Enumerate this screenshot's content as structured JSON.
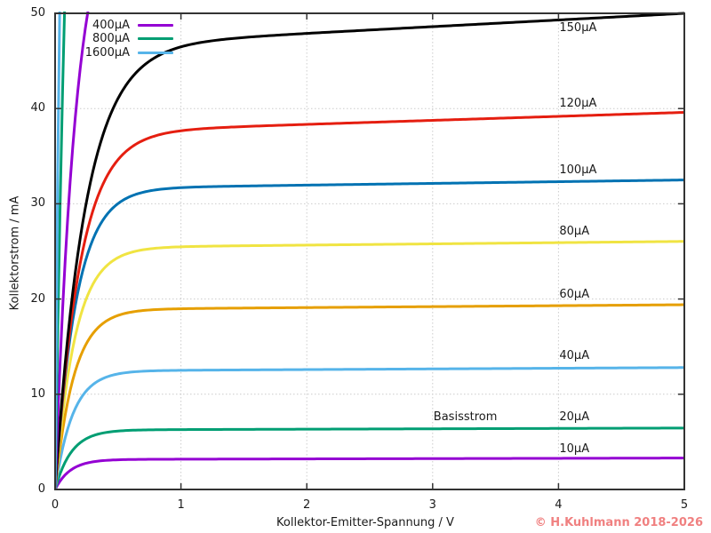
{
  "chart_data": {
    "type": "line",
    "title": "",
    "xlabel": "Kollektor-Emitter-Spannung / V",
    "ylabel": "Kollektorstrom / mA",
    "xlim": [
      0,
      5
    ],
    "ylim": [
      0,
      50
    ],
    "xticks": [
      0,
      1,
      2,
      3,
      4,
      5
    ],
    "yticks": [
      0,
      10,
      20,
      30,
      40,
      50
    ],
    "grid": {
      "show": true,
      "style": "dotted",
      "color": "#cccccc",
      "x_lines": [
        1,
        2,
        3,
        4
      ],
      "y_lines": [
        10,
        20,
        30,
        40
      ]
    },
    "axis_color": "#333333",
    "legend": {
      "position": "top-left",
      "entries": [
        {
          "label": "400µA",
          "color": "#9400d3"
        },
        {
          "label": "800µA",
          "color": "#009e73"
        },
        {
          "label": "1600µA",
          "color": "#56b4e9"
        }
      ]
    },
    "annotation": {
      "text": "Basisstrom",
      "x_V": 3.0,
      "y_mA": 7.5
    },
    "x_sample_V": [
      0,
      0.1,
      0.25,
      0.5,
      1,
      2,
      3,
      4,
      5
    ],
    "series": [
      {
        "name": "10µA",
        "color": "#9400d3",
        "model": {
          "sat_mA": 3.15,
          "knee_V": 0.12,
          "slope_mA_per_V": 0.03
        },
        "values_mA": [
          0,
          1.78,
          2.77,
          3.12,
          3.18,
          3.21,
          3.24,
          3.27,
          3.3
        ],
        "label_at": {
          "x_V": 4.0,
          "y_mA": 4.1
        }
      },
      {
        "name": "20µA",
        "color": "#009e73",
        "model": {
          "sat_mA": 6.25,
          "knee_V": 0.13,
          "slope_mA_per_V": 0.04
        },
        "values_mA": [
          0,
          3.36,
          5.35,
          6.14,
          6.29,
          6.33,
          6.37,
          6.41,
          6.45
        ],
        "label_at": {
          "x_V": 4.0,
          "y_mA": 7.5
        }
      },
      {
        "name": "40µA",
        "color": "#56b4e9",
        "model": {
          "sat_mA": 12.45,
          "knee_V": 0.14,
          "slope_mA_per_V": 0.07
        },
        "values_mA": [
          0,
          6.36,
          10.38,
          12.14,
          12.51,
          12.59,
          12.66,
          12.73,
          12.8
        ],
        "label_at": {
          "x_V": 4.0,
          "y_mA": 13.9
        }
      },
      {
        "name": "60µA",
        "color": "#e69f00",
        "model": {
          "sat_mA": 18.9,
          "knee_V": 0.15,
          "slope_mA_per_V": 0.1
        },
        "values_mA": [
          0,
          9.21,
          15.36,
          18.28,
          18.98,
          19.1,
          19.2,
          19.3,
          19.4
        ],
        "label_at": {
          "x_V": 4.0,
          "y_mA": 20.3
        }
      },
      {
        "name": "80µA",
        "color": "#f0e442",
        "model": {
          "sat_mA": 25.4,
          "knee_V": 0.16,
          "slope_mA_per_V": 0.13
        },
        "values_mA": [
          0,
          11.82,
          20.11,
          24.35,
          25.48,
          25.66,
          25.79,
          25.92,
          26.05
        ],
        "label_at": {
          "x_V": 4.0,
          "y_mA": 27.0
        }
      },
      {
        "name": "100µA",
        "color": "#0072b2",
        "model": {
          "sat_mA": 31.6,
          "knee_V": 0.17,
          "slope_mA_per_V": 0.18
        },
        "values_mA": [
          0,
          14.07,
          24.38,
          30.02,
          31.69,
          31.96,
          32.14,
          32.32,
          32.5
        ],
        "label_at": {
          "x_V": 4.0,
          "y_mA": 33.4
        }
      },
      {
        "name": "120µA",
        "color": "#e51e10",
        "model": {
          "sat_mA": 37.5,
          "knee_V": 0.2,
          "slope_mA_per_V": 0.42
        },
        "values_mA": [
          0,
          14.8,
          26.86,
          34.63,
          37.67,
          38.34,
          38.76,
          39.18,
          39.6
        ],
        "label_at": {
          "x_V": 4.0,
          "y_mA": 40.4
        }
      },
      {
        "name": "150µA",
        "color": "#000000",
        "model": {
          "sat_mA": 46.5,
          "knee_V": 0.24,
          "slope_mA_per_V": 0.7
        },
        "values_mA": [
          0,
          15.92,
          30.27,
          41.06,
          46.48,
          47.88,
          48.59,
          49.29,
          50.0
        ],
        "label_at": {
          "x_V": 4.0,
          "y_mA": 48.3
        }
      },
      {
        "name": "400µA",
        "color": "#9400d3",
        "model": {
          "sat_mA": 64,
          "knee_V": 0.17,
          "slope_mA_per_V": 0
        },
        "values_mA": [
          0,
          28.5,
          49.3,
          60.6,
          63.8,
          64.0,
          64.0,
          64.0,
          64.0
        ],
        "off_scale_above_V": 0.26
      },
      {
        "name": "800µA",
        "color": "#009e73",
        "model": {
          "sat_mA": 128,
          "knee_V": 0.15,
          "slope_mA_per_V": 0
        },
        "values_mA": [
          0,
          62.3,
          103.8,
          123.4,
          127.8,
          128.0,
          128.0,
          128.0,
          128.0
        ],
        "off_scale_above_V": 0.075
      },
      {
        "name": "1600µA",
        "color": "#56b4e9",
        "model": {
          "sat_mA": 260,
          "knee_V": 0.15,
          "slope_mA_per_V": 0
        },
        "values_mA": [
          0,
          126.5,
          210.9,
          250.7,
          259.7,
          260.0,
          260.0,
          260.0,
          260.0
        ],
        "off_scale_above_V": 0.033
      }
    ]
  },
  "footer": {
    "copyright": "© H.Kuhlmann 2018-2026",
    "color": "#f08080"
  }
}
